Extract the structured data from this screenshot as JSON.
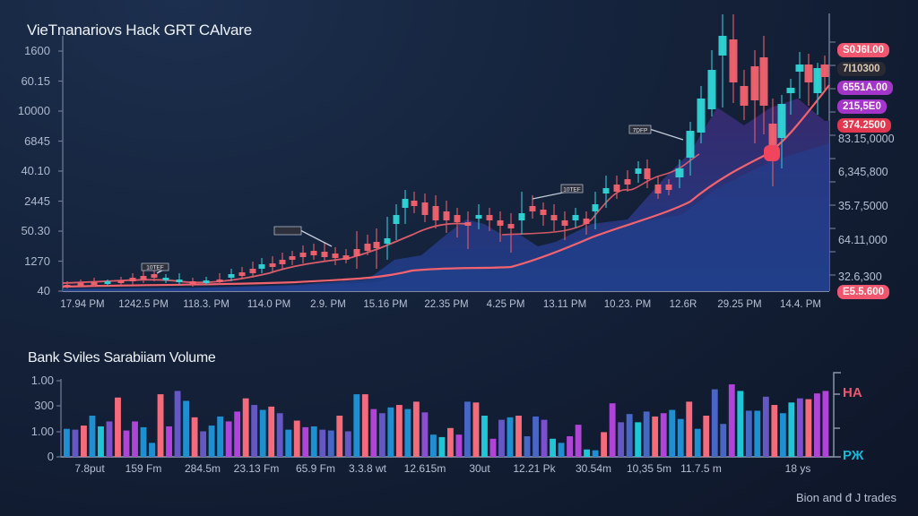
{
  "header": {
    "title": "VieTnanariovs Hack GRT CAlvare"
  },
  "price_panel": {
    "y_axis_left": [
      "1600",
      "60.15",
      "10000",
      "6845",
      "40.10",
      "2445",
      "50.30",
      "1270",
      "40"
    ],
    "y_axis_right": [
      "83.15,0000",
      "6,345,800",
      "35.7,5000",
      "64.11,000",
      "32.6,300"
    ],
    "x_axis": [
      "17.94 PM",
      "1242.5 PM",
      "118.3. PM",
      "114.0 PM",
      "2.9. PM",
      "15.16 PM",
      "22.35 PM",
      "4.25 PM",
      "13.11 PM",
      "10.23. PM",
      "12.6R",
      "29.25 PM",
      "14.4. PM"
    ],
    "price_tags": [
      {
        "label": "S0J6I.00",
        "color": "#f0566d"
      },
      {
        "label": "7I10300",
        "color": "#2a2a35"
      },
      {
        "label": "6551A.00",
        "color": "#a335c9"
      },
      {
        "label": "215,5E0",
        "color": "#a335c9"
      },
      {
        "label": "374.2500",
        "color": "#e2384f"
      },
      {
        "label": "E5.5.600",
        "color": "#f0566d"
      }
    ],
    "annotations": [
      "10TEF",
      "",
      "10TEF",
      "7DFP"
    ]
  },
  "volume_panel": {
    "title": "Bank Sviles Sarabiiam Volume",
    "y_axis": [
      "1.00",
      "300",
      "1.00",
      "0"
    ],
    "x_axis": [
      "7.8put",
      "159 Fm",
      "284.5m",
      "23.13 Fm",
      "65.9 Fm",
      "3.3.8 wt",
      "12.615m",
      "30ut",
      "12.21 Pk",
      "30.54m",
      "10,35 5m",
      "11.7.5 m",
      "18 ys"
    ],
    "right_labels": [
      {
        "label": "HA",
        "color": "#f0566d"
      },
      {
        "label": "РЖ",
        "color": "#19b8d6"
      }
    ]
  },
  "footer": {
    "caption": "Bion and đ J trades"
  },
  "colors": {
    "up": "#2fd6d6",
    "down": "#f2636f",
    "ma": "#f2636f",
    "area_top": "#3b2a6e",
    "area_bottom": "#1d3a7a"
  },
  "chart_data": [
    {
      "type": "candlestick",
      "title": "VieTnanariovs Hack GRT CAlvare",
      "categories": [
        "17.94 PM",
        "1242.5 PM",
        "118.3. PM",
        "114.0 PM",
        "2.9. PM",
        "15.16 PM",
        "22.35 PM",
        "4.25 PM",
        "13.11 PM",
        "10.23. PM",
        "12.6R",
        "29.25 PM",
        "14.4. PM"
      ],
      "series": [
        {
          "name": "close (approx, normalized 0-100)",
          "values": [
            2,
            3,
            4,
            3,
            5,
            9,
            15,
            28,
            24,
            22,
            32,
            55,
            72,
            80
          ]
        },
        {
          "name": "moving average",
          "values": [
            1,
            2,
            2,
            3,
            3,
            5,
            8,
            14,
            14,
            18,
            25,
            34,
            48,
            62
          ]
        }
      ],
      "grid": false,
      "y_left_ticks": [
        "1600",
        "60.15",
        "10000",
        "6845",
        "40.10",
        "2445",
        "50.30",
        "1270",
        "40"
      ],
      "y_right_ticks": [
        "83.15,0000",
        "6,345,800",
        "35.7,5000",
        "64.11,000",
        "32.6,300"
      ]
    },
    {
      "type": "bar",
      "title": "Bank Sviles Sarabiiam Volume",
      "categories": [
        "7.8put",
        "159 Fm",
        "284.5m",
        "23.13 Fm",
        "65.9 Fm",
        "3.3.8 wt",
        "12.615m",
        "30ut",
        "12.21 Pk",
        "30.54m",
        "10,35 5m",
        "11.7.5 m",
        "18 ys"
      ],
      "values": [
        34,
        33,
        38,
        50,
        37,
        43,
        72,
        32,
        43,
        36,
        17,
        76,
        37,
        80,
        68,
        48,
        31,
        38,
        49,
        43,
        55,
        71,
        63,
        57,
        61,
        53,
        33,
        44,
        36,
        37,
        33,
        32,
        50,
        31,
        76,
        76,
        58,
        53,
        60,
        63,
        58,
        67,
        54,
        27,
        24,
        35,
        27,
        67,
        66,
        50,
        22,
        45,
        48,
        50,
        25,
        49,
        45,
        22,
        17,
        25,
        39,
        9,
        8,
        30,
        65,
        42,
        52,
        42,
        55,
        49,
        53,
        57,
        46,
        67,
        34,
        50,
        82,
        40,
        88,
        80,
        56,
        56,
        73,
        63,
        53,
        66,
        71,
        70,
        77,
        80
      ],
      "ylim": [
        0,
        100
      ],
      "y_ticks": [
        "1.00",
        "300",
        "1.00",
        "0"
      ]
    }
  ]
}
